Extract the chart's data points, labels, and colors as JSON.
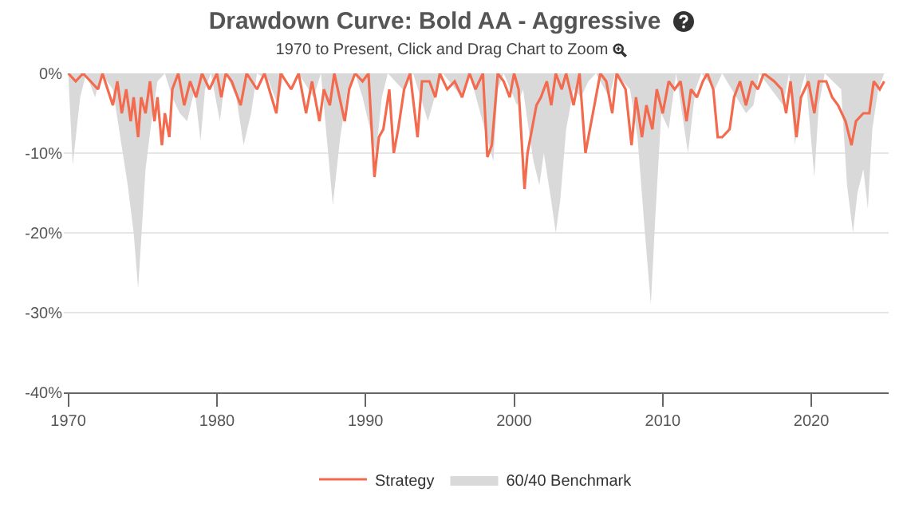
{
  "chart_data": {
    "type": "line",
    "title": "Drawdown Curve: Bold AA - Aggressive",
    "subtitle": "1970 to Present, Click and Drag Chart to Zoom",
    "xlim": [
      1969.7,
      2025.2
    ],
    "xticks": [
      1970,
      1980,
      1990,
      2000,
      2010,
      2020
    ],
    "ylim": [
      -40,
      0
    ],
    "yticks": [
      {
        "value": -40,
        "label": "-40%"
      },
      {
        "value": -30,
        "label": "-30%"
      },
      {
        "value": -20,
        "label": "-20%"
      },
      {
        "value": -10,
        "label": "-10%"
      },
      {
        "value": 0,
        "label": "0%"
      }
    ],
    "grid": "y",
    "legend": "bottom",
    "series": [
      {
        "name": "Strategy",
        "color": "#f26b4f",
        "x": [
          1970.0,
          1970.5,
          1971,
          1972.0,
          1972.3,
          1973.0,
          1973.3,
          1973.6,
          1973.9,
          1974.2,
          1974.4,
          1974.7,
          1974.9,
          1975.2,
          1975.5,
          1975.8,
          1976.0,
          1976.3,
          1976.5,
          1976.8,
          1977.0,
          1977.4,
          1977.8,
          1978.2,
          1978.6,
          1979.0,
          1979.5,
          1980.0,
          1980.3,
          1980.6,
          1981.0,
          1981.6,
          1982.0,
          1982.7,
          1983.2,
          1984.0,
          1984.3,
          1985.0,
          1985.5,
          1986.0,
          1986.4,
          1986.9,
          1987.2,
          1987.6,
          1987.9,
          1988.6,
          1988.9,
          1989.3,
          1989.8,
          1990.2,
          1990.6,
          1990.9,
          1991.2,
          1991.6,
          1991.9,
          1992.2,
          1992.6,
          1993.0,
          1993.5,
          1993.8,
          1994.3,
          1994.7,
          1995.0,
          1995.5,
          1996.0,
          1996.5,
          1997.0,
          1997.4,
          1997.9,
          1998.2,
          1998.5,
          1998.9,
          1999.3,
          1999.7,
          2000.0,
          2000.3,
          2000.7,
          2000.9,
          2001.2,
          2001.5,
          2001.8,
          2002.2,
          2002.5,
          2002.8,
          2003.2,
          2003.5,
          2004.0,
          2004.4,
          2004.8,
          2005.1,
          2005.5,
          2005.8,
          2006.2,
          2006.6,
          2006.9,
          2007.5,
          2007.9,
          2008.2,
          2008.6,
          2008.9,
          2009.3,
          2009.6,
          2010.0,
          2010.4,
          2010.8,
          2011.2,
          2011.6,
          2011.9,
          2012.3,
          2012.7,
          2013.0,
          2013.4,
          2013.7,
          2014.0,
          2014.5,
          2014.8,
          2015.2,
          2015.6,
          2016.0,
          2016.4,
          2016.8,
          2017.5,
          2018.0,
          2018.3,
          2018.6,
          2019.0,
          2019.3,
          2019.8,
          2020.2,
          2020.5,
          2021.0,
          2021.4,
          2021.8,
          2022.3,
          2022.7,
          2023.0,
          2023.5,
          2023.9,
          2024.2,
          2024.6,
          2024.9
        ],
        "values": [
          0,
          -1,
          0,
          -2,
          0,
          -4,
          -1,
          -5,
          -2,
          -6,
          -3,
          -8,
          -3,
          -5,
          -1,
          -6,
          -3,
          -9,
          -5,
          -8,
          -2,
          0,
          -4,
          -1,
          -3,
          0,
          -2,
          0,
          -3,
          0,
          -1,
          -4,
          0,
          -2,
          0,
          -5,
          0,
          -2,
          0,
          -5,
          -1,
          -6,
          -2,
          -4,
          0,
          -6,
          -2,
          0,
          -1,
          0,
          -13,
          -8,
          -7,
          -2,
          -10,
          -7,
          -2,
          0,
          -8,
          -1,
          -1,
          -3,
          0,
          -2,
          -1,
          -3,
          0,
          -2,
          0,
          -10.5,
          -9,
          0,
          -1,
          -3,
          0,
          -2,
          -14.5,
          -10,
          -7,
          -4,
          -3,
          -1,
          -4,
          0,
          -2,
          0,
          -4,
          0,
          -10,
          -7,
          -3,
          0,
          -1,
          -5,
          0,
          -2,
          -9,
          -3,
          -8,
          -4,
          -7,
          -2,
          -5,
          -1,
          -2,
          -1,
          -6,
          -2,
          -3,
          -1,
          0,
          -2,
          -8,
          -8,
          -7,
          -3,
          -1,
          -4,
          -1,
          -2,
          0,
          -1,
          -2,
          -5,
          -1,
          -8,
          -3,
          -1,
          -5,
          -1,
          -1,
          -3,
          -4,
          -6,
          -9,
          -6,
          -5,
          -5,
          -1,
          -2,
          -1
        ]
      },
      {
        "name": "60/40 Benchmark",
        "type": "area",
        "color": "#d9d9d9",
        "x": [
          1970.0,
          1970.3,
          1970.8,
          1971.2,
          1971.8,
          1972.2,
          1973.0,
          1973.5,
          1974.0,
          1974.4,
          1974.7,
          1974.9,
          1975.2,
          1975.6,
          1976.0,
          1976.5,
          1977.0,
          1977.5,
          1978.0,
          1978.5,
          1978.9,
          1979.2,
          1979.6,
          1980.2,
          1980.6,
          1981.3,
          1981.8,
          1982.3,
          1982.7,
          1983.5,
          1984.1,
          1984.5,
          1985.5,
          1986.5,
          1987.0,
          1987.8,
          1988.3,
          1988.8,
          1989.3,
          1989.8,
          1990.7,
          1991.1,
          1991.5,
          1992.5,
          1993.2,
          1994.2,
          1994.8,
          1995.2,
          1996.5,
          1997.0,
          1998.6,
          1998.9,
          1999.3,
          2000.2,
          2000.6,
          2000.9,
          2001.3,
          2001.7,
          2002.0,
          2002.5,
          2002.8,
          2003.1,
          2003.5,
          2004.0,
          2004.5,
          2005.0,
          2005.5,
          2006.4,
          2006.8,
          2007.8,
          2008.3,
          2008.8,
          2009.2,
          2009.5,
          2009.9,
          2010.4,
          2010.9,
          2011.7,
          2012.2,
          2012.6,
          2013.5,
          2014.0,
          2015.6,
          2016.1,
          2016.5,
          2018.1,
          2018.5,
          2018.9,
          2019.3,
          2019.6,
          2020.2,
          2020.5,
          2020.9,
          2022.0,
          2022.4,
          2022.8,
          2023.1,
          2023.5,
          2023.8,
          2024.1,
          2024.5,
          2024.9
        ],
        "values": [
          0,
          -11.5,
          -3,
          0,
          -3,
          0,
          -2,
          -8,
          -14,
          -20,
          -27,
          -21,
          -12,
          -6,
          -1,
          0,
          -3,
          -5,
          -6,
          -2,
          -8.5,
          -2,
          0,
          -6,
          0,
          -3,
          -9,
          -5,
          0,
          -1,
          -4,
          0,
          0,
          -3,
          0,
          -16.5,
          -8,
          -2,
          0,
          -3,
          -10,
          -3,
          0,
          -2,
          0,
          -6,
          -2,
          0,
          -3,
          0,
          -11,
          -2,
          0,
          -4,
          -2,
          -6,
          -11,
          -14,
          -10,
          -16,
          -20,
          -16,
          -7,
          -2,
          -3,
          -1,
          0,
          -3,
          0,
          -2,
          -8,
          -20,
          -29,
          -18,
          -5,
          -7,
          0,
          -10,
          -2,
          0,
          -2,
          0,
          -5,
          -4,
          0,
          -4,
          0,
          -9,
          -2,
          0,
          -13,
          -4,
          0,
          -2,
          -14,
          -20,
          -15,
          -12,
          -17,
          -7,
          -2,
          0
        ]
      }
    ]
  }
}
